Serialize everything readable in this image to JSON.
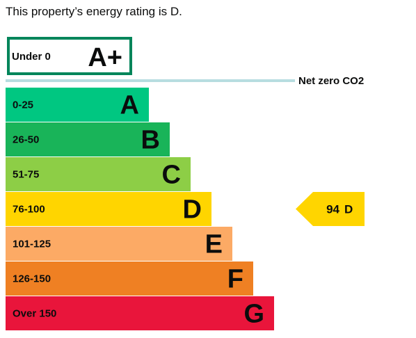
{
  "summary": "This property’s energy rating is D.",
  "chart_data": {
    "type": "bar",
    "orientation": "horizontal",
    "top_band": {
      "range": "Under 0",
      "letter": "A+",
      "color": "#00855a"
    },
    "divider": {
      "label": "Net zero CO2",
      "color": "#b7dde0"
    },
    "bands": [
      {
        "range": "0-25",
        "letter": "A",
        "color": "#00c781"
      },
      {
        "range": "26-50",
        "letter": "B",
        "color": "#19b459"
      },
      {
        "range": "51-75",
        "letter": "C",
        "color": "#8dce46"
      },
      {
        "range": "76-100",
        "letter": "D",
        "color": "#ffd500"
      },
      {
        "range": "101-125",
        "letter": "E",
        "color": "#fcaa65"
      },
      {
        "range": "126-150",
        "letter": "F",
        "color": "#ef8023"
      },
      {
        "range": "Over 150",
        "letter": "G",
        "color": "#e9153b"
      }
    ],
    "current_rating": {
      "value": "94",
      "letter": "D",
      "color": "#ffd500"
    }
  }
}
